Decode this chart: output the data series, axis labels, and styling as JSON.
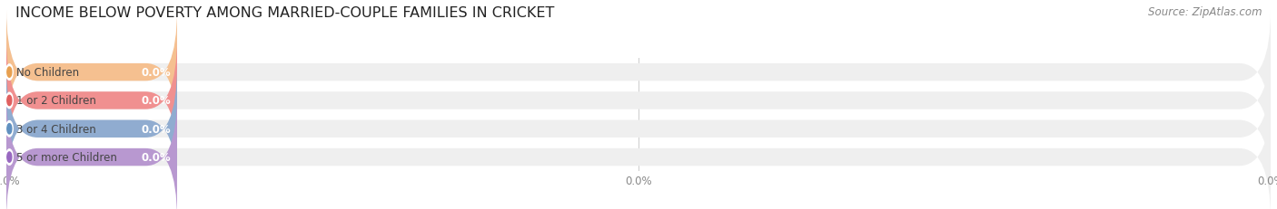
{
  "title": "INCOME BELOW POVERTY AMONG MARRIED-COUPLE FAMILIES IN CRICKET",
  "source": "Source: ZipAtlas.com",
  "categories": [
    "No Children",
    "1 or 2 Children",
    "3 or 4 Children",
    "5 or more Children"
  ],
  "values": [
    0.0,
    0.0,
    0.0,
    0.0
  ],
  "bar_colors": [
    "#f5c090",
    "#f09090",
    "#90acd0",
    "#b898d0"
  ],
  "bar_bg_color": "#efefef",
  "dot_colors": [
    "#e8a050",
    "#e06060",
    "#6090c0",
    "#9868c0"
  ],
  "background_color": "#ffffff",
  "xlim_max": 100,
  "bar_height": 0.62,
  "title_fontsize": 11.5,
  "label_fontsize": 8.5,
  "value_fontsize": 8.5,
  "source_fontsize": 8.5,
  "xtick_fontsize": 8.5,
  "xtick_color": "#888888",
  "label_color": "#444444",
  "colored_bar_width": 13.5,
  "rounding_size": 2.5
}
